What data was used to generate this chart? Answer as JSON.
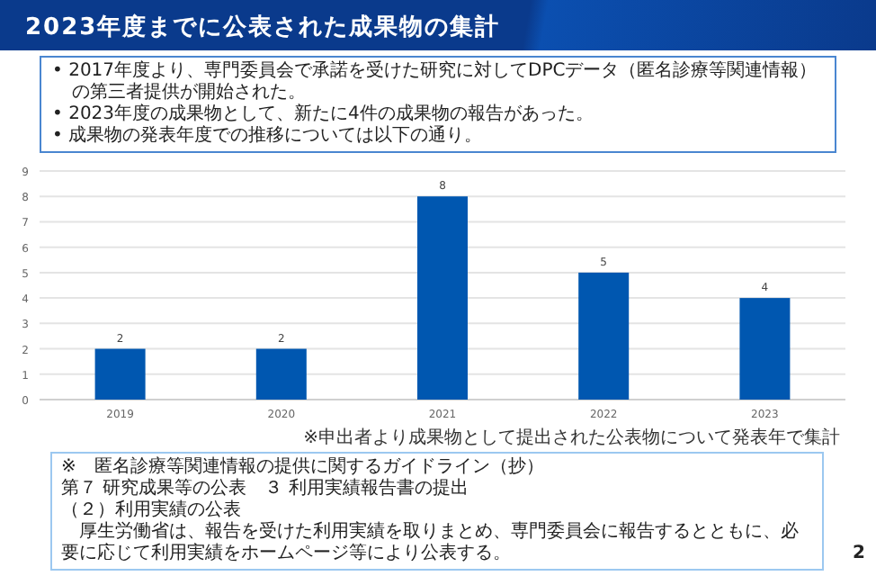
{
  "chart_data": {
    "type": "bar",
    "title": "2023年度までに公表された成果物の集計",
    "subtitle": [
      "• 2017年度より、専門委員会で承諾を受けた研究に対してDPCデータ（匿名診療等関連情報）の第三者提供が開始された。",
      "• 2023年度の成果物として、新たに4件の成果物の報告があった。",
      "• 成果物の発表年度での推移については以下の通り。"
    ],
    "categories": [
      "2019",
      "2020",
      "2021",
      "2022",
      "2023"
    ],
    "values": [
      2,
      2,
      8,
      5,
      4
    ],
    "color": "#0057b0",
    "ylim": [
      0,
      9
    ],
    "yticks": [
      0,
      1,
      2,
      3,
      4,
      5,
      6,
      7,
      8,
      9
    ],
    "grid": "y",
    "data_labels": true,
    "annotations": [
      "※申出者より成果物として提出された公表物について発表年で集計",
      "※　匿名診療等関連情報の提供に関するガイドライン（抄）",
      "第７ 研究成果等の公表　３ 利用実績報告書の提出",
      "（２）利用実績の公表",
      "　厚生労働省は、報告を受けた利用実績を取りまとめ、専門委員会に報告するとともに、必要に応じて利用実績をホームページ等により公表する。",
      "2"
    ]
  }
}
